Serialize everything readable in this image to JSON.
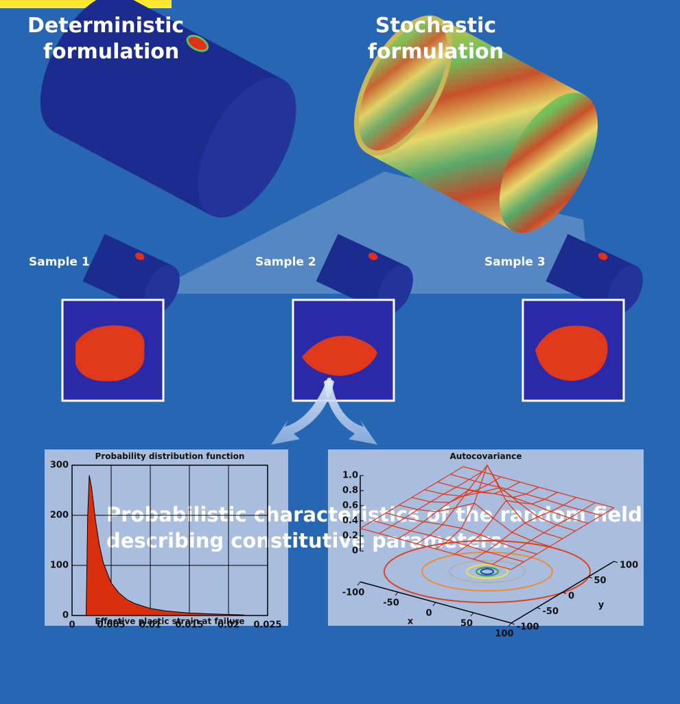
{
  "headings": {
    "deterministic": [
      "Deterministic",
      "formulation"
    ],
    "stochastic": [
      "Stochastic",
      "formulation"
    ]
  },
  "samples": [
    "Sample 1",
    "Sample 2",
    "Sample 3"
  ],
  "caption": [
    "Probabilistic characteristics of the random field",
    "describing constitutive parameters."
  ],
  "chart_data": [
    {
      "type": "area",
      "title": "Probability distribution function",
      "x_label": "Effective plastic strain at failure",
      "x": [
        0.0018,
        0.002,
        0.0022,
        0.0025,
        0.003,
        0.0035,
        0.004,
        0.005,
        0.006,
        0.007,
        0.008,
        0.01,
        0.012,
        0.015,
        0.018,
        0.02,
        0.022
      ],
      "values": [
        0,
        200,
        280,
        255,
        190,
        140,
        105,
        65,
        45,
        32,
        24,
        14,
        9,
        5,
        3,
        2,
        1
      ],
      "color": "#d8300c",
      "xlim": [
        0,
        0.025
      ],
      "xticks": [
        0,
        0.005,
        0.01,
        0.015,
        0.02,
        0.025
      ],
      "ylim": [
        0,
        300
      ],
      "yticks": [
        0,
        100,
        200,
        300
      ],
      "grid": true
    },
    {
      "type": "surface",
      "title": "Autocovariance",
      "x_label": "x",
      "y_label": "y",
      "color": "#e0381a",
      "x": [
        -100,
        -75,
        -50,
        -25,
        0,
        25,
        50,
        75,
        100
      ],
      "y": [
        -100,
        -75,
        -50,
        -25,
        0,
        25,
        50,
        75,
        100
      ],
      "z": [
        [
          0.3,
          0.3,
          0.3,
          0.3,
          0.3,
          0.3,
          0.3,
          0.3,
          0.3
        ],
        [
          0.3,
          0.3,
          0.3,
          0.31,
          0.31,
          0.31,
          0.3,
          0.3,
          0.3
        ],
        [
          0.3,
          0.3,
          0.32,
          0.35,
          0.37,
          0.35,
          0.32,
          0.3,
          0.3
        ],
        [
          0.3,
          0.31,
          0.35,
          0.47,
          0.6,
          0.47,
          0.35,
          0.31,
          0.3
        ],
        [
          0.3,
          0.31,
          0.37,
          0.6,
          1.0,
          0.6,
          0.37,
          0.31,
          0.3
        ],
        [
          0.3,
          0.31,
          0.35,
          0.47,
          0.6,
          0.47,
          0.35,
          0.31,
          0.3
        ],
        [
          0.3,
          0.3,
          0.32,
          0.35,
          0.37,
          0.35,
          0.32,
          0.3,
          0.3
        ],
        [
          0.3,
          0.3,
          0.3,
          0.31,
          0.31,
          0.31,
          0.3,
          0.3,
          0.3
        ],
        [
          0.3,
          0.3,
          0.3,
          0.3,
          0.3,
          0.3,
          0.3,
          0.3,
          0.3
        ]
      ],
      "xlim": [
        -100,
        100
      ],
      "xticks": [
        -100,
        -50,
        0,
        50,
        100
      ],
      "ylim": [
        -100,
        100
      ],
      "yticks": [
        -100,
        -50,
        0,
        50,
        100
      ],
      "zlim": [
        0,
        1
      ],
      "zticks": [
        0,
        {
          "value": 0.2,
          "label": "0.2"
        },
        {
          "value": 0.4,
          "label": "0.4"
        },
        {
          "value": 0.6,
          "label": "0.6"
        },
        {
          "value": 0.8,
          "label": "0.8"
        },
        {
          "value": 1,
          "label": "1.0"
        }
      ]
    }
  ]
}
